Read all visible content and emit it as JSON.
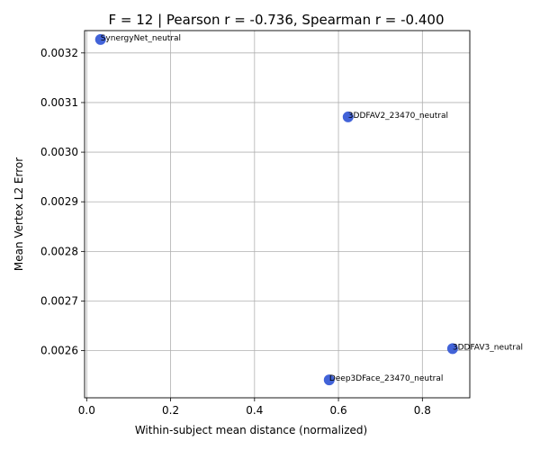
{
  "chart_data": {
    "type": "scatter",
    "title": "F = 12 | Pearson r = -0.736, Spearman r = -0.400",
    "xlabel": "Within-subject mean distance (normalized)",
    "ylabel": "Mean Vertex L2 Error",
    "xlim": [
      -0.005,
      0.913
    ],
    "ylim": [
      0.002505,
      0.003245
    ],
    "xticks": [
      0.0,
      0.2,
      0.4,
      0.6,
      0.8
    ],
    "xtick_labels": [
      "0.0",
      "0.2",
      "0.4",
      "0.6",
      "0.8"
    ],
    "yticks": [
      0.0026,
      0.0027,
      0.0028,
      0.0029,
      0.003,
      0.0031,
      0.0032
    ],
    "ytick_labels": [
      "0.0026",
      "0.0027",
      "0.0028",
      "0.0029",
      "0.0030",
      "0.0031",
      "0.0032"
    ],
    "grid": true,
    "point_color": "#4263d8",
    "points": [
      {
        "label": "SynergyNet_neutral",
        "x": 0.033,
        "y": 0.003227
      },
      {
        "label": "3DDFAV2_23470_neutral",
        "x": 0.623,
        "y": 0.003071
      },
      {
        "label": "3DDFAV3_neutral",
        "x": 0.872,
        "y": 0.002604
      },
      {
        "label": "Deep3DFace_23470_neutral",
        "x": 0.578,
        "y": 0.002541
      }
    ]
  }
}
